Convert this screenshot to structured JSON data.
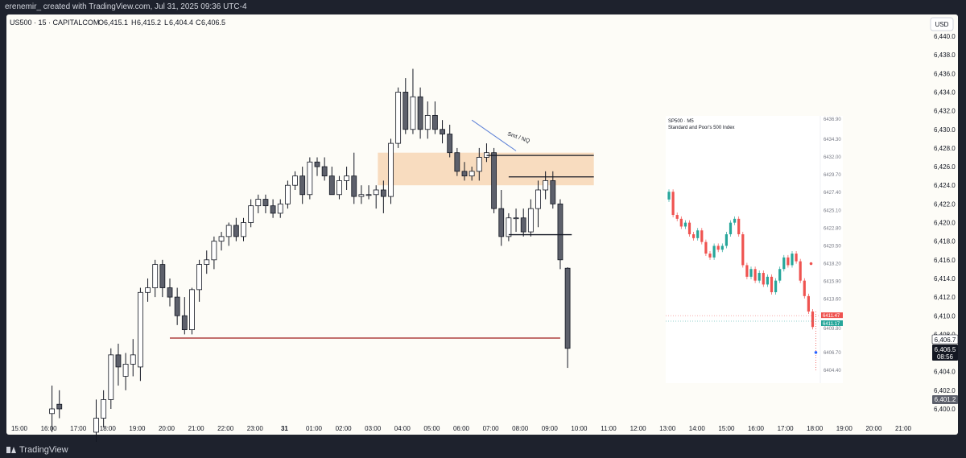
{
  "header": {
    "credit": "erenemir_ created with TradingView.com, Jul 31, 2025 09:36 UTC-4"
  },
  "footer": {
    "brand": "TradingView"
  },
  "symbol_bar": {
    "symbol": "US500 · 15 · CAPITALCOM",
    "open_label": "O",
    "open": "6,415.1",
    "high_label": "H",
    "high": "6,415.2",
    "low_label": "L",
    "low": "6,404.4",
    "close_label": "C",
    "close": "6,406.5"
  },
  "currency_button": "USD",
  "price_badges": {
    "last": "6,406.7",
    "current": "6,406.5",
    "countdown": "08:56",
    "low_mark": "6,401.2"
  },
  "drawing_label": "Smt / NQ",
  "inset": {
    "symbol": "SP500 · M5",
    "name": "Standard and Poor's 500 Index",
    "price_scale": [
      "6436.90",
      "6434.30",
      "6432.00",
      "6429.70",
      "6427.40",
      "6425.10",
      "6422.80",
      "6420.50",
      "6418.20",
      "6415.90",
      "6413.60",
      "6409.80",
      "6406.70",
      "6404.40"
    ],
    "badge_red": "6411.47",
    "badge_green": "6411.17"
  },
  "colors": {
    "background": "#fdfcf7",
    "frame": "#1e222d",
    "up_candle": "#ffffff",
    "down_candle": "#5d606b",
    "zone": "#f5cfa6",
    "level_line": "#9e1b1b",
    "trendline": "#5b7fd6",
    "inset_up": "#26a69a",
    "inset_down": "#ef5350"
  },
  "chart_data": {
    "type": "candlestick",
    "y_axis_labels": [
      "6,440.0",
      "6,438.0",
      "6,436.0",
      "6,434.0",
      "6,432.0",
      "6,430.0",
      "6,428.0",
      "6,426.0",
      "6,424.0",
      "6,422.0",
      "6,420.0",
      "6,418.0",
      "6,416.0",
      "6,414.0",
      "6,412.0",
      "6,410.0",
      "6,408.0",
      "6,406.0",
      "6,404.0",
      "6,402.0",
      "6,400.0"
    ],
    "x_axis_labels": [
      "15:00",
      "16:00",
      "17:00",
      "18:00",
      "19:00",
      "20:00",
      "21:00",
      "22:00",
      "23:00",
      "31",
      "01:00",
      "02:00",
      "03:00",
      "04:00",
      "05:00",
      "06:00",
      "07:00",
      "08:00",
      "09:00",
      "10:00",
      "11:00",
      "12:00",
      "13:00",
      "14:00",
      "15:00",
      "16:00",
      "17:00",
      "18:00",
      "19:00",
      "20:00",
      "21:00"
    ],
    "ylim": [
      6399.5,
      6441.5
    ],
    "candles": [
      {
        "t": "16:00",
        "o": 6399.5,
        "h": 6402.5,
        "l": 6397.5,
        "c": 6400.0
      },
      {
        "t": "16:15",
        "o": 6400.5,
        "h": 6402.0,
        "l": 6399.0,
        "c": 6400.0
      },
      {
        "t": "17:30",
        "o": 6397.5,
        "h": 6401.0,
        "l": 6395.0,
        "c": 6399.0
      },
      {
        "t": "17:45",
        "o": 6399.0,
        "h": 6402.0,
        "l": 6398.0,
        "c": 6401.0
      },
      {
        "t": "18:00",
        "o": 6401.0,
        "h": 6406.5,
        "l": 6400.0,
        "c": 6405.8
      },
      {
        "t": "18:15",
        "o": 6405.8,
        "h": 6407.0,
        "l": 6402.5,
        "c": 6404.5
      },
      {
        "t": "18:30",
        "o": 6403.5,
        "h": 6406.0,
        "l": 6402.0,
        "c": 6404.8
      },
      {
        "t": "18:45",
        "o": 6404.8,
        "h": 6407.5,
        "l": 6403.5,
        "c": 6405.8
      },
      {
        "t": "19:00",
        "o": 6404.5,
        "h": 6413.0,
        "l": 6403.0,
        "c": 6412.5
      },
      {
        "t": "19:15",
        "o": 6412.5,
        "h": 6414.0,
        "l": 6411.5,
        "c": 6413.0
      },
      {
        "t": "19:30",
        "o": 6413.0,
        "h": 6416.0,
        "l": 6412.0,
        "c": 6415.5
      },
      {
        "t": "19:45",
        "o": 6415.5,
        "h": 6416.0,
        "l": 6412.0,
        "c": 6413.0
      },
      {
        "t": "20:00",
        "o": 6413.0,
        "h": 6414.0,
        "l": 6411.0,
        "c": 6412.0
      },
      {
        "t": "20:15",
        "o": 6412.0,
        "h": 6413.0,
        "l": 6409.0,
        "c": 6410.0
      },
      {
        "t": "20:30",
        "o": 6410.0,
        "h": 6412.0,
        "l": 6408.0,
        "c": 6408.5
      },
      {
        "t": "20:45",
        "o": 6408.5,
        "h": 6413.0,
        "l": 6408.0,
        "c": 6412.8
      },
      {
        "t": "21:00",
        "o": 6412.8,
        "h": 6416.0,
        "l": 6411.5,
        "c": 6415.5
      },
      {
        "t": "21:15",
        "o": 6415.5,
        "h": 6417.0,
        "l": 6414.5,
        "c": 6416.0
      },
      {
        "t": "21:30",
        "o": 6416.0,
        "h": 6418.5,
        "l": 6415.0,
        "c": 6418.0
      },
      {
        "t": "21:45",
        "o": 6418.0,
        "h": 6419.0,
        "l": 6417.0,
        "c": 6418.5
      },
      {
        "t": "22:00",
        "o": 6418.5,
        "h": 6420.0,
        "l": 6417.5,
        "c": 6419.7
      },
      {
        "t": "22:15",
        "o": 6419.7,
        "h": 6420.5,
        "l": 6418.0,
        "c": 6418.5
      },
      {
        "t": "22:30",
        "o": 6418.5,
        "h": 6420.5,
        "l": 6418.0,
        "c": 6420.0
      },
      {
        "t": "22:45",
        "o": 6420.0,
        "h": 6422.5,
        "l": 6419.5,
        "c": 6421.8
      },
      {
        "t": "23:00",
        "o": 6421.8,
        "h": 6423.0,
        "l": 6421.0,
        "c": 6422.5
      },
      {
        "t": "23:15",
        "o": 6422.5,
        "h": 6423.0,
        "l": 6421.0,
        "c": 6421.8
      },
      {
        "t": "23:30",
        "o": 6421.8,
        "h": 6422.5,
        "l": 6420.5,
        "c": 6421.0
      },
      {
        "t": "23:45",
        "o": 6421.0,
        "h": 6422.5,
        "l": 6420.5,
        "c": 6422.0
      },
      {
        "t": "00:00",
        "o": 6422.0,
        "h": 6424.5,
        "l": 6421.5,
        "c": 6424.0
      },
      {
        "t": "00:15",
        "o": 6424.0,
        "h": 6425.5,
        "l": 6423.5,
        "c": 6425.0
      },
      {
        "t": "00:30",
        "o": 6425.0,
        "h": 6426.0,
        "l": 6422.0,
        "c": 6423.0
      },
      {
        "t": "00:45",
        "o": 6423.0,
        "h": 6427.0,
        "l": 6422.5,
        "c": 6426.5
      },
      {
        "t": "01:00",
        "o": 6426.5,
        "h": 6427.0,
        "l": 6425.0,
        "c": 6426.0
      },
      {
        "t": "01:15",
        "o": 6426.0,
        "h": 6427.0,
        "l": 6424.5,
        "c": 6425.0
      },
      {
        "t": "01:30",
        "o": 6425.0,
        "h": 6426.0,
        "l": 6423.0,
        "c": 6423.0
      },
      {
        "t": "01:45",
        "o": 6423.0,
        "h": 6425.0,
        "l": 6422.5,
        "c": 6424.5
      },
      {
        "t": "02:00",
        "o": 6424.5,
        "h": 6426.0,
        "l": 6423.5,
        "c": 6425.0
      },
      {
        "t": "02:15",
        "o": 6425.0,
        "h": 6427.5,
        "l": 6422.0,
        "c": 6422.8
      },
      {
        "t": "02:30",
        "o": 6422.8,
        "h": 6424.0,
        "l": 6422.0,
        "c": 6423.0
      },
      {
        "t": "02:45",
        "o": 6423.0,
        "h": 6424.0,
        "l": 6422.5,
        "c": 6423.0
      },
      {
        "t": "03:00",
        "o": 6423.0,
        "h": 6424.0,
        "l": 6421.5,
        "c": 6423.5
      },
      {
        "t": "03:15",
        "o": 6423.5,
        "h": 6424.5,
        "l": 6421.0,
        "c": 6422.8
      },
      {
        "t": "03:30",
        "o": 6422.8,
        "h": 6429.0,
        "l": 6422.0,
        "c": 6428.5
      },
      {
        "t": "03:45",
        "o": 6428.5,
        "h": 6434.5,
        "l": 6428.0,
        "c": 6434.0
      },
      {
        "t": "04:00",
        "o": 6434.0,
        "h": 6435.5,
        "l": 6429.5,
        "c": 6430.0
      },
      {
        "t": "04:15",
        "o": 6430.0,
        "h": 6436.5,
        "l": 6429.5,
        "c": 6433.5
      },
      {
        "t": "04:30",
        "o": 6433.5,
        "h": 6434.5,
        "l": 6429.0,
        "c": 6430.0
      },
      {
        "t": "04:45",
        "o": 6430.0,
        "h": 6433.0,
        "l": 6429.0,
        "c": 6431.5
      },
      {
        "t": "05:00",
        "o": 6431.5,
        "h": 6433.0,
        "l": 6429.5,
        "c": 6430.0
      },
      {
        "t": "05:15",
        "o": 6430.0,
        "h": 6431.0,
        "l": 6428.5,
        "c": 6429.5
      },
      {
        "t": "05:30",
        "o": 6429.5,
        "h": 6430.5,
        "l": 6427.0,
        "c": 6427.5
      },
      {
        "t": "05:45",
        "o": 6427.5,
        "h": 6428.0,
        "l": 6425.0,
        "c": 6425.5
      },
      {
        "t": "06:00",
        "o": 6425.5,
        "h": 6426.5,
        "l": 6424.5,
        "c": 6425.0
      },
      {
        "t": "06:15",
        "o": 6425.0,
        "h": 6426.0,
        "l": 6424.5,
        "c": 6425.5
      },
      {
        "t": "06:30",
        "o": 6425.5,
        "h": 6428.0,
        "l": 6424.5,
        "c": 6427.0
      },
      {
        "t": "06:45",
        "o": 6427.0,
        "h": 6428.5,
        "l": 6426.5,
        "c": 6427.5
      },
      {
        "t": "07:00",
        "o": 6427.5,
        "h": 6428.0,
        "l": 6421.0,
        "c": 6421.5
      },
      {
        "t": "07:15",
        "o": 6421.5,
        "h": 6423.5,
        "l": 6417.5,
        "c": 6418.5
      },
      {
        "t": "07:30",
        "o": 6418.5,
        "h": 6421.0,
        "l": 6418.0,
        "c": 6420.5
      },
      {
        "t": "07:45",
        "o": 6420.5,
        "h": 6421.5,
        "l": 6419.0,
        "c": 6420.5
      },
      {
        "t": "08:00",
        "o": 6420.5,
        "h": 6421.5,
        "l": 6418.5,
        "c": 6419.0
      },
      {
        "t": "08:15",
        "o": 6419.0,
        "h": 6422.5,
        "l": 6418.5,
        "c": 6421.5
      },
      {
        "t": "08:30",
        "o": 6421.5,
        "h": 6424.5,
        "l": 6419.5,
        "c": 6423.5
      },
      {
        "t": "08:45",
        "o": 6423.5,
        "h": 6425.5,
        "l": 6422.5,
        "c": 6424.5
      },
      {
        "t": "09:00",
        "o": 6424.5,
        "h": 6425.5,
        "l": 6421.5,
        "c": 6422.0
      },
      {
        "t": "09:15",
        "o": 6422.0,
        "h": 6422.5,
        "l": 6415.0,
        "c": 6416.0
      },
      {
        "t": "09:30",
        "o": 6415.1,
        "h": 6415.2,
        "l": 6404.4,
        "c": 6406.5
      }
    ],
    "zone": {
      "from": "03:15",
      "to": "10:30",
      "top": 6427.5,
      "bottom": 6424.0
    },
    "level_line": {
      "from": "20:00",
      "to": "09:15",
      "price": 6407.6
    },
    "horizontal_lines": [
      {
        "from": "06:45",
        "to": "10:30",
        "price": 6427.2
      },
      {
        "from": "07:30",
        "to": "10:30",
        "price": 6424.9
      },
      {
        "from": "07:30",
        "to": "09:45",
        "price": 6418.7
      }
    ],
    "trendline": {
      "from_time": "06:15",
      "from_price": 6431.0,
      "to_time": "07:45",
      "to_price": 6427.7
    },
    "inset_series": [
      {
        "o": 6426.5,
        "c": 6427.5
      },
      {
        "o": 6427.5,
        "c": 6424.5
      },
      {
        "o": 6424.5,
        "c": 6424.0
      },
      {
        "o": 6424.0,
        "c": 6423.0
      },
      {
        "o": 6423.0,
        "c": 6423.5
      },
      {
        "o": 6423.5,
        "c": 6422.0
      },
      {
        "o": 6422.0,
        "c": 6421.5
      },
      {
        "o": 6421.5,
        "c": 6422.5
      },
      {
        "o": 6422.5,
        "c": 6421.0
      },
      {
        "o": 6421.0,
        "c": 6419.5
      },
      {
        "o": 6419.5,
        "c": 6419.0
      },
      {
        "o": 6419.0,
        "c": 6420.5
      },
      {
        "o": 6420.5,
        "c": 6420.0
      },
      {
        "o": 6420.0,
        "c": 6420.5
      },
      {
        "o": 6420.5,
        "c": 6422.0
      },
      {
        "o": 6422.0,
        "c": 6423.5
      },
      {
        "o": 6423.5,
        "c": 6424.0
      },
      {
        "o": 6424.0,
        "c": 6422.0
      },
      {
        "o": 6422.0,
        "c": 6418.0
      },
      {
        "o": 6418.0,
        "c": 6416.5
      },
      {
        "o": 6416.5,
        "c": 6417.5
      },
      {
        "o": 6417.5,
        "c": 6416.0
      },
      {
        "o": 6416.0,
        "c": 6417.0
      },
      {
        "o": 6417.0,
        "c": 6415.5
      },
      {
        "o": 6415.5,
        "c": 6416.5
      },
      {
        "o": 6416.5,
        "c": 6414.5
      },
      {
        "o": 6414.5,
        "c": 6416.0
      },
      {
        "o": 6416.0,
        "c": 6417.5
      },
      {
        "o": 6417.5,
        "c": 6419.0
      },
      {
        "o": 6419.0,
        "c": 6418.0
      },
      {
        "o": 6418.0,
        "c": 6419.5
      },
      {
        "o": 6419.5,
        "c": 6418.5
      },
      {
        "o": 6418.5,
        "c": 6416.0
      },
      {
        "o": 6416.0,
        "c": 6414.0
      },
      {
        "o": 6414.0,
        "c": 6412.0
      },
      {
        "o": 6412.0,
        "c": 6410.0
      }
    ]
  }
}
